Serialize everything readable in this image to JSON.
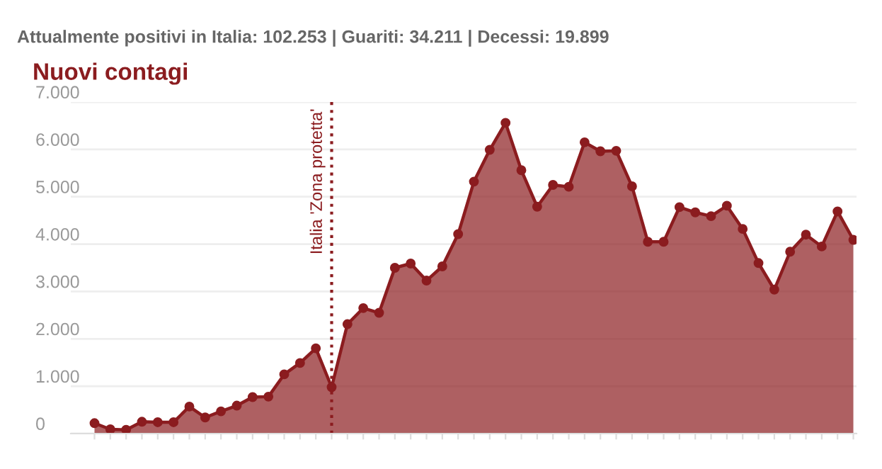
{
  "chart_data": {
    "type": "area",
    "subtitle": "Attualmente positivi in Italia: 102.253 | Guariti: 34.211 | Decessi: 19.899",
    "title": "Nuovi contagi",
    "categories": [
      null,
      null,
      null,
      null,
      null,
      null,
      null,
      null,
      null,
      null,
      null,
      null,
      null,
      null,
      null,
      null,
      null,
      null,
      null,
      null,
      null,
      null,
      null,
      null,
      null,
      null,
      null,
      null,
      null,
      null,
      null,
      null,
      null,
      null,
      null,
      null,
      null,
      null,
      null,
      null,
      null,
      null,
      null,
      null,
      null,
      null,
      null,
      null,
      null
    ],
    "series": [
      {
        "color": "#8b1c1f",
        "values": [
          220,
          90,
          80,
          250,
          240,
          240,
          570,
          340,
          470,
          590,
          770,
          780,
          1250,
          1490,
          1800,
          980,
          2310,
          2650,
          2550,
          3500,
          3590,
          3230,
          3530,
          4210,
          5320,
          5990,
          6560,
          5560,
          4790,
          5250,
          5210,
          6150,
          5960,
          5970,
          5220,
          4050,
          4050,
          4780,
          4670,
          4590,
          4810,
          4320,
          3600,
          3040,
          3840,
          4200,
          3950,
          4690,
          4090
        ]
      }
    ],
    "ylim": [
      0,
      7000
    ],
    "yticks": [
      0,
      {
        "value": 1000,
        "label": "1.000"
      },
      {
        "value": 2000,
        "label": "2.000"
      },
      {
        "value": 3000,
        "label": "3.000"
      },
      {
        "value": 4000,
        "label": "4.000"
      },
      {
        "value": 5000,
        "label": "5.000"
      },
      {
        "value": 6000,
        "label": "6.000"
      },
      {
        "value": 7000,
        "label": "7.000"
      }
    ],
    "tick_labels": "y",
    "grid": "y",
    "marker": "circle",
    "line_style": "solid",
    "legend": false,
    "annotations": [
      "Italia 'Zona protetta'"
    ]
  }
}
